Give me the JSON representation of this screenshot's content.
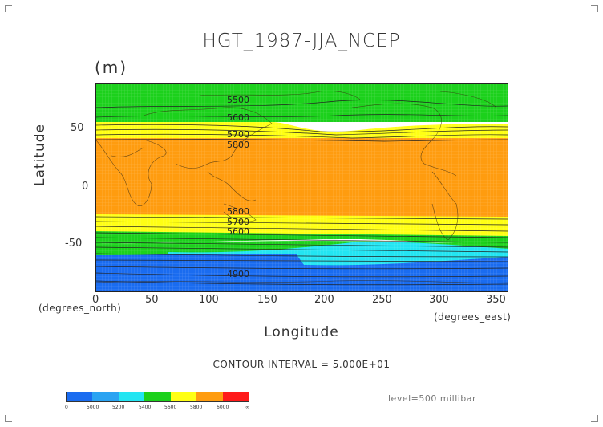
{
  "title": "HGT_1987-JJA_NCEP",
  "units": "(m)",
  "y_axis_label": "Latitude",
  "x_axis_label": "Longitude",
  "x_unit_left": "(degrees_north)",
  "x_unit_right": "(degrees_east)",
  "contour_interval": "CONTOUR INTERVAL = 5.000E+01",
  "level_text": "level=500 millibar",
  "chart_data": {
    "type": "heatmap",
    "xlim": [
      0,
      360
    ],
    "ylim": [
      -90,
      90
    ],
    "x_ticks": [
      "0",
      "50",
      "100",
      "150",
      "200",
      "250",
      "300",
      "350"
    ],
    "y_ticks": [
      "50",
      "0",
      "-50"
    ],
    "contour_labels": [
      "5500",
      "5600",
      "5700",
      "5800",
      "5800",
      "5700",
      "5600",
      "4900"
    ],
    "colorbar_labels": [
      "0",
      "5000",
      "5200",
      "5400",
      "5600",
      "5800",
      "6000",
      "∞"
    ],
    "colors": [
      "#1a6cf0",
      "#2aa3f2",
      "#23e5f2",
      "#1cd11c",
      "#ffff14",
      "#ff9c0f",
      "#ff1a1a"
    ]
  }
}
